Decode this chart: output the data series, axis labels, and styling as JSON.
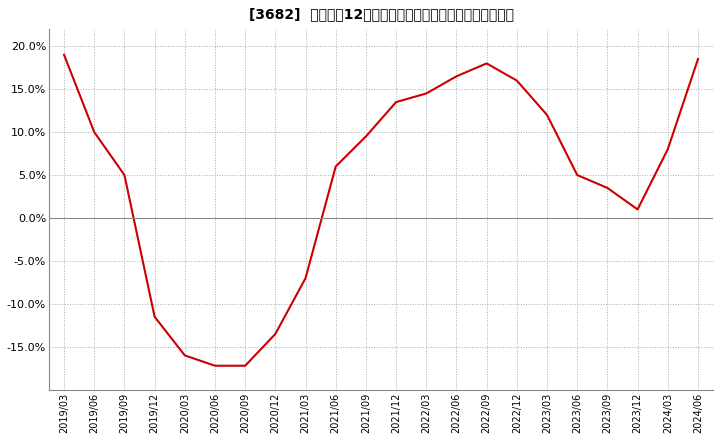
{
  "title": "[3682]  売上高の12か月移動合計の対前年同期増減率の推移",
  "line_color": "#cc0000",
  "bg_color": "#ffffff",
  "plot_bg_color": "#ffffff",
  "grid_color": "#aaaaaa",
  "x_labels": [
    "2019/03",
    "2019/06",
    "2019/09",
    "2019/12",
    "2020/03",
    "2020/06",
    "2020/09",
    "2020/12",
    "2021/03",
    "2021/06",
    "2021/09",
    "2021/12",
    "2022/03",
    "2022/06",
    "2022/09",
    "2022/12",
    "2023/03",
    "2023/06",
    "2023/09",
    "2023/12",
    "2024/03",
    "2024/06"
  ],
  "y_values": [
    19.0,
    10.0,
    5.0,
    -11.5,
    -16.0,
    -17.2,
    -17.2,
    -13.5,
    -7.0,
    6.0,
    9.5,
    13.5,
    14.5,
    16.5,
    18.0,
    16.0,
    12.0,
    5.0,
    3.5,
    1.0,
    8.0,
    18.5
  ],
  "ylim": [
    -20,
    22
  ],
  "yticks": [
    -15.0,
    -10.0,
    -5.0,
    0.0,
    5.0,
    10.0,
    15.0,
    20.0
  ],
  "ytick_labels": [
    "-15.0%",
    "-10.0%",
    "-5.0%",
    "0.0%",
    "5.0%",
    "10.0%",
    "15.0%",
    "20.0%"
  ],
  "zero_line_color": "#888888",
  "spine_color": "#888888"
}
